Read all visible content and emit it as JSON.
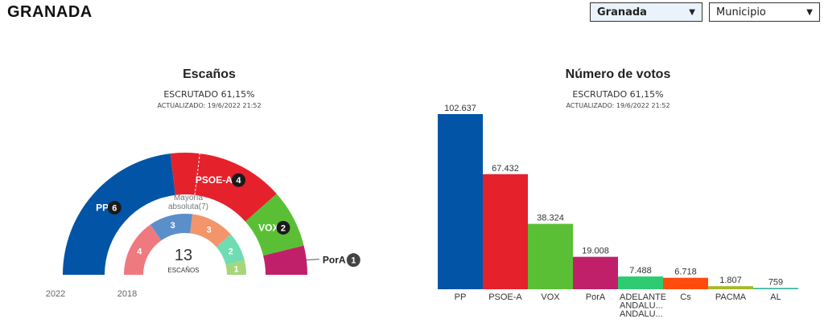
{
  "header": {
    "title": "GRANADA"
  },
  "selectors": {
    "province": "Granada",
    "municipality": "Municipio"
  },
  "seats_panel": {
    "title": "Escaños",
    "escrutado": "ESCRUTADO 61,15%",
    "actualizado": "ACTUALIZADO: 19/6/2022 21:52"
  },
  "votes_panel": {
    "title": "Número de votos",
    "escrutado": "ESCRUTADO 61,15%",
    "actualizado": "ACTUALIZADO: 19/6/2022 21:52"
  },
  "chart_data": [
    {
      "type": "pie",
      "subtype": "parliament-semicircle",
      "total_seats": 13,
      "total_label": "ESCAÑOS",
      "majority_label": [
        "Mayoría",
        "absoluta(7)"
      ],
      "outer_ring_label": "2022",
      "inner_ring_label": "2018",
      "series": [
        {
          "name": "2022",
          "slices": [
            {
              "party": "PP",
              "seats": 6,
              "color": "#0254a6"
            },
            {
              "party": "PSOE-A",
              "seats": 4,
              "color": "#e5212c"
            },
            {
              "party": "VOX",
              "seats": 2,
              "color": "#5bbf35"
            },
            {
              "party": "PorA",
              "seats": 1,
              "color": "#c0206a"
            }
          ]
        },
        {
          "name": "2018",
          "slices": [
            {
              "seats": 4,
              "color": "#ee7a80"
            },
            {
              "seats": 3,
              "color": "#5a8fca"
            },
            {
              "seats": 3,
              "color": "#f2956a"
            },
            {
              "seats": 2,
              "color": "#6fdcb4"
            },
            {
              "seats": 1,
              "color": "#a6d67a"
            }
          ]
        }
      ]
    },
    {
      "type": "bar",
      "categories": [
        "PP",
        "PSOE-A",
        "VOX",
        "PorA",
        "ADELANTE ANDALU... ANDALU...",
        "Cs",
        "PACMA",
        "AL"
      ],
      "category_lines": [
        [
          "PP"
        ],
        [
          "PSOE-A"
        ],
        [
          "VOX"
        ],
        [
          "PorA"
        ],
        [
          "ADELANTE",
          "ANDALU...",
          "ANDALU..."
        ],
        [
          "Cs"
        ],
        [
          "PACMA"
        ],
        [
          "AL"
        ]
      ],
      "values": [
        102637,
        67432,
        38324,
        19008,
        7488,
        6718,
        1807,
        759
      ],
      "value_labels": [
        "102.637",
        "67.432",
        "38.324",
        "19.008",
        "7.488",
        "6.718",
        "1.807",
        "759"
      ],
      "colors": [
        "#0254a6",
        "#e5212c",
        "#5bbf35",
        "#c0206a",
        "#2ecc71",
        "#ff4c0c",
        "#a8b82a",
        "#2bb3a0"
      ],
      "ylim": [
        0,
        102637
      ]
    }
  ]
}
